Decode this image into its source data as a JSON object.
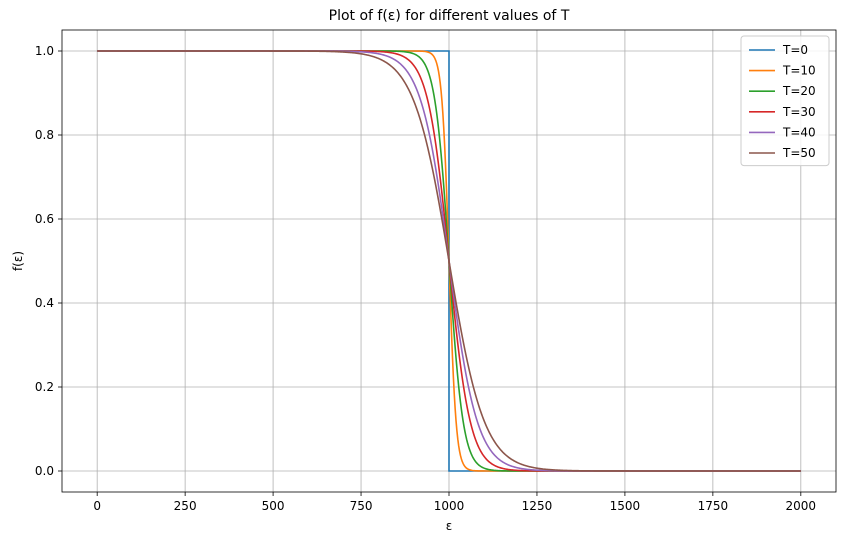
{
  "chart_data": {
    "type": "line",
    "title": "Plot of f(ε) for different values of T",
    "xlabel": "ε",
    "ylabel": "f(ε)",
    "xlim": [
      -100,
      2100
    ],
    "ylim": [
      -0.05,
      1.05
    ],
    "xticks": [
      0,
      250,
      500,
      750,
      1000,
      1250,
      1500,
      1750,
      2000
    ],
    "yticks": [
      0.0,
      0.2,
      0.4,
      0.6,
      0.8,
      1.0
    ],
    "xtick_labels": [
      "0",
      "250",
      "500",
      "750",
      "1000",
      "1250",
      "1500",
      "1750",
      "2000"
    ],
    "ytick_labels": [
      "0.0",
      "0.2",
      "0.4",
      "0.6",
      "0.8",
      "1.0"
    ],
    "grid": true,
    "legend_position": "top-right",
    "mu": 1000,
    "x_range": [
      0,
      2000
    ],
    "series": [
      {
        "name": "T=0",
        "T": 0,
        "color": "#1f77b4"
      },
      {
        "name": "T=10",
        "T": 10,
        "color": "#ff7f0e"
      },
      {
        "name": "T=20",
        "T": 20,
        "color": "#2ca02c"
      },
      {
        "name": "T=30",
        "T": 30,
        "color": "#d62728"
      },
      {
        "name": "T=40",
        "T": 40,
        "color": "#9467bd"
      },
      {
        "name": "T=50",
        "T": 50,
        "color": "#8c564b"
      }
    ]
  }
}
